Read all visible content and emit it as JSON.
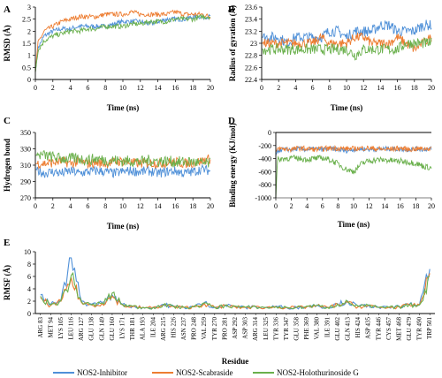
{
  "colors": {
    "blue": "#4f90d8",
    "orange": "#ed7d31",
    "green": "#6ab04c"
  },
  "legend": [
    {
      "label": "NOS2-Inhibitor",
      "color": "#4f90d8"
    },
    {
      "label": "NOS2-Scabraside",
      "color": "#ed7d31"
    },
    {
      "label": "NOS2-Holothurinoside G",
      "color": "#6ab04c"
    }
  ],
  "chart_data": [
    {
      "panel": "A",
      "type": "line",
      "xlabel": "Time (ns)",
      "ylabel": "RMSD (Å)",
      "xlim": [
        0,
        20
      ],
      "ylim": [
        0,
        3
      ],
      "xticks": [
        "0",
        "2",
        "4",
        "6",
        "8",
        "10",
        "12",
        "14",
        "16",
        "18",
        "20"
      ],
      "yticks": [
        "0",
        "0.5",
        "1",
        "1.5",
        "2",
        "2.5",
        "3"
      ],
      "x": [
        0,
        0.3,
        1,
        2,
        3,
        4,
        5,
        6,
        7,
        8,
        9,
        10,
        11,
        12,
        13,
        14,
        15,
        16,
        17,
        18,
        19,
        20
      ],
      "series": [
        {
          "name": "NOS2-Inhibitor",
          "color": "#4f90d8",
          "values": [
            0.3,
            1.3,
            1.8,
            2.0,
            2.1,
            2.1,
            2.2,
            2.2,
            2.2,
            2.2,
            2.3,
            2.4,
            2.4,
            2.4,
            2.3,
            2.4,
            2.5,
            2.5,
            2.5,
            2.6,
            2.6,
            2.6
          ],
          "noise": 0.1
        },
        {
          "name": "NOS2-Scabraside",
          "color": "#ed7d31",
          "values": [
            0.3,
            1.5,
            2.0,
            2.2,
            2.4,
            2.5,
            2.6,
            2.6,
            2.6,
            2.7,
            2.7,
            2.7,
            2.8,
            2.7,
            2.7,
            2.7,
            2.7,
            2.8,
            2.7,
            2.7,
            2.7,
            2.6
          ],
          "noise": 0.1
        },
        {
          "name": "NOS2-Holothurinoside G",
          "color": "#6ab04c",
          "values": [
            0.3,
            1.2,
            1.6,
            1.8,
            1.9,
            2.0,
            2.0,
            2.1,
            2.1,
            2.2,
            2.2,
            2.2,
            2.3,
            2.3,
            2.4,
            2.4,
            2.4,
            2.5,
            2.5,
            2.5,
            2.6,
            2.6
          ],
          "noise": 0.1
        }
      ]
    },
    {
      "panel": "B",
      "type": "line",
      "xlabel": "Time (ns)",
      "ylabel": "Radius of gyration (Å)",
      "xlim": [
        0,
        20
      ],
      "ylim": [
        22.4,
        23.6
      ],
      "xticks": [
        "0",
        "2",
        "4",
        "6",
        "8",
        "10",
        "12",
        "14",
        "16",
        "18",
        "20"
      ],
      "yticks": [
        "22.4",
        "22.6",
        "22.8",
        "23",
        "23.2",
        "23.4",
        "23.6"
      ],
      "x": [
        0,
        1,
        2,
        3,
        4,
        5,
        6,
        7,
        8,
        9,
        10,
        11,
        12,
        13,
        14,
        15,
        16,
        17,
        18,
        19,
        20
      ],
      "series": [
        {
          "name": "NOS2-Inhibitor",
          "color": "#4f90d8",
          "values": [
            23.1,
            23.1,
            23.1,
            23.0,
            23.1,
            23.1,
            23.1,
            23.1,
            23.2,
            23.2,
            23.1,
            23.2,
            23.2,
            23.2,
            23.3,
            23.3,
            23.2,
            23.2,
            23.2,
            23.3,
            23.3
          ],
          "noise": 0.09
        },
        {
          "name": "NOS2-Scabraside",
          "color": "#ed7d31",
          "values": [
            23.0,
            23.0,
            23.0,
            23.0,
            23.0,
            23.0,
            23.0,
            23.1,
            23.0,
            23.0,
            23.0,
            23.1,
            23.1,
            23.0,
            23.0,
            23.0,
            23.1,
            23.0,
            22.9,
            23.0,
            23.1
          ],
          "noise": 0.08
        },
        {
          "name": "NOS2-Holothurinoside G",
          "color": "#6ab04c",
          "values": [
            22.9,
            22.9,
            22.9,
            22.9,
            22.9,
            22.9,
            22.9,
            22.9,
            22.9,
            22.9,
            22.9,
            22.8,
            22.9,
            22.9,
            22.9,
            22.9,
            22.9,
            23.0,
            23.0,
            23.0,
            23.0
          ],
          "noise": 0.09
        }
      ]
    },
    {
      "panel": "C",
      "type": "line",
      "xlabel": "Time (ns)",
      "ylabel": "Hydrogen bond",
      "xlim": [
        0,
        20
      ],
      "ylim": [
        270,
        350
      ],
      "xticks": [
        "0",
        "2",
        "4",
        "6",
        "8",
        "10",
        "12",
        "14",
        "16",
        "18",
        "20"
      ],
      "yticks": [
        "270",
        "290",
        "310",
        "330",
        "350"
      ],
      "x": [
        0,
        1,
        2,
        3,
        4,
        5,
        6,
        7,
        8,
        9,
        10,
        11,
        12,
        13,
        14,
        15,
        16,
        17,
        18,
        19,
        20
      ],
      "series": [
        {
          "name": "NOS2-Inhibitor",
          "color": "#4f90d8",
          "values": [
            305,
            300,
            302,
            300,
            303,
            300,
            302,
            303,
            302,
            300,
            302,
            303,
            302,
            303,
            300,
            302,
            303,
            300,
            302,
            305,
            303
          ],
          "noise": 6
        },
        {
          "name": "NOS2-Scabraside",
          "color": "#ed7d31",
          "values": [
            312,
            312,
            313,
            315,
            312,
            314,
            312,
            313,
            312,
            314,
            315,
            313,
            312,
            313,
            312,
            313,
            314,
            312,
            313,
            315,
            318
          ],
          "noise": 6
        },
        {
          "name": "NOS2-Holothurinoside G",
          "color": "#6ab04c",
          "values": [
            322,
            322,
            320,
            318,
            318,
            318,
            316,
            318,
            316,
            316,
            315,
            315,
            314,
            316,
            315,
            315,
            314,
            314,
            314,
            312,
            312
          ],
          "noise": 7
        }
      ]
    },
    {
      "panel": "D",
      "type": "line",
      "xlabel": "Time (ns)",
      "ylabel": "Binding energy (KJ/mol)",
      "xlim": [
        0,
        20
      ],
      "ylim": [
        -1000,
        0
      ],
      "xticks": [
        "0",
        "2",
        "4",
        "6",
        "8",
        "10",
        "12",
        "14",
        "16",
        "18",
        "20"
      ],
      "yticks": [
        "-1000",
        "-800",
        "-600",
        "-400",
        "-200",
        "0"
      ],
      "x": [
        0,
        0.2,
        1,
        2,
        3,
        4,
        5,
        6,
        7,
        8,
        9,
        10,
        11,
        12,
        13,
        14,
        15,
        16,
        17,
        18,
        19,
        20
      ],
      "series": [
        {
          "name": "NOS2-Inhibitor",
          "color": "#4f90d8",
          "values": [
            -350,
            -280,
            -260,
            -260,
            -250,
            -260,
            -250,
            -260,
            -250,
            -260,
            -280,
            -260,
            -250,
            -260,
            -260,
            -250,
            -250,
            -260,
            -260,
            -250,
            -260,
            -250
          ],
          "noise": 35
        },
        {
          "name": "NOS2-Scabraside",
          "color": "#ed7d31",
          "values": [
            -300,
            -250,
            -250,
            -260,
            -240,
            -250,
            -260,
            -250,
            -240,
            -240,
            -250,
            -250,
            -240,
            -240,
            -250,
            -260,
            -250,
            -240,
            -260,
            -250,
            -250,
            -240
          ],
          "noise": 40
        },
        {
          "name": "NOS2-Holothurinoside G",
          "color": "#6ab04c",
          "values": [
            -1000,
            -420,
            -400,
            -390,
            -400,
            -410,
            -400,
            -390,
            -420,
            -480,
            -560,
            -600,
            -480,
            -430,
            -420,
            -420,
            -430,
            -440,
            -450,
            -470,
            -520,
            -540
          ],
          "noise": 45
        }
      ]
    },
    {
      "panel": "E",
      "type": "line",
      "xlabel": "Residue",
      "ylabel": "RMSF (Å)",
      "ylim": [
        0,
        10
      ],
      "yticks": [
        "0",
        "2",
        "4",
        "6",
        "8",
        "10"
      ],
      "categories": [
        "ARG 83",
        "MET 94",
        "LYS 105",
        "LEU 116",
        "ARG 127",
        "GLU 138",
        "GLN 149",
        "GLU 160",
        "LYS 171",
        "THR 181",
        "ALA 193",
        "ILE 204",
        "ARG 215",
        "HIS 226",
        "ASN 237",
        "PRO 248",
        "VAL 259",
        "TYR 270",
        "PRO 281",
        "ASP 292",
        "ASP 303",
        "ARG 314",
        "LEU 325",
        "TYR 336",
        "TYR 347",
        "GLU 358",
        "PHE 369",
        "VAL 380",
        "ILE 391",
        "GLU 402",
        "GLN 413",
        "HIS 424",
        "ASP 435",
        "TYR 446",
        "CYS 457",
        "MET 468",
        "GLU 479",
        "TYR 490",
        "TRP 501"
      ],
      "series": [
        {
          "name": "NOS2-Inhibitor",
          "color": "#4f90d8",
          "values": [
            3.0,
            1.5,
            2.2,
            9.0,
            2.0,
            1.5,
            1.8,
            3.0,
            1.5,
            1.2,
            1.0,
            1.0,
            1.5,
            1.2,
            1.0,
            1.2,
            1.8,
            1.0,
            1.4,
            1.2,
            1.0,
            1.2,
            1.0,
            1.2,
            1.0,
            1.0,
            1.2,
            1.4,
            1.0,
            1.6,
            2.0,
            1.2,
            1.4,
            1.0,
            1.0,
            1.2,
            1.5,
            1.5,
            7.2
          ]
        },
        {
          "name": "NOS2-Scabraside",
          "color": "#ed7d31",
          "values": [
            2.6,
            1.3,
            2.0,
            5.8,
            1.8,
            1.4,
            1.6,
            2.8,
            1.4,
            1.1,
            1.0,
            1.0,
            1.4,
            1.1,
            1.0,
            1.1,
            1.6,
            1.0,
            1.3,
            1.1,
            1.0,
            1.1,
            1.0,
            1.1,
            1.0,
            1.0,
            1.1,
            1.3,
            1.0,
            1.5,
            1.8,
            1.1,
            1.3,
            1.0,
            1.0,
            1.1,
            1.4,
            1.4,
            6.5
          ]
        },
        {
          "name": "NOS2-Holothurinoside G",
          "color": "#6ab04c",
          "values": [
            2.8,
            1.4,
            2.1,
            6.2,
            1.9,
            1.4,
            1.7,
            3.3,
            1.5,
            1.2,
            1.0,
            1.0,
            1.4,
            1.2,
            1.0,
            1.1,
            1.7,
            1.0,
            1.3,
            1.2,
            1.0,
            1.1,
            1.0,
            1.1,
            1.0,
            1.0,
            1.2,
            1.3,
            1.0,
            1.5,
            1.9,
            1.2,
            1.3,
            1.0,
            1.0,
            1.1,
            1.4,
            1.4,
            6.0
          ]
        }
      ]
    }
  ]
}
